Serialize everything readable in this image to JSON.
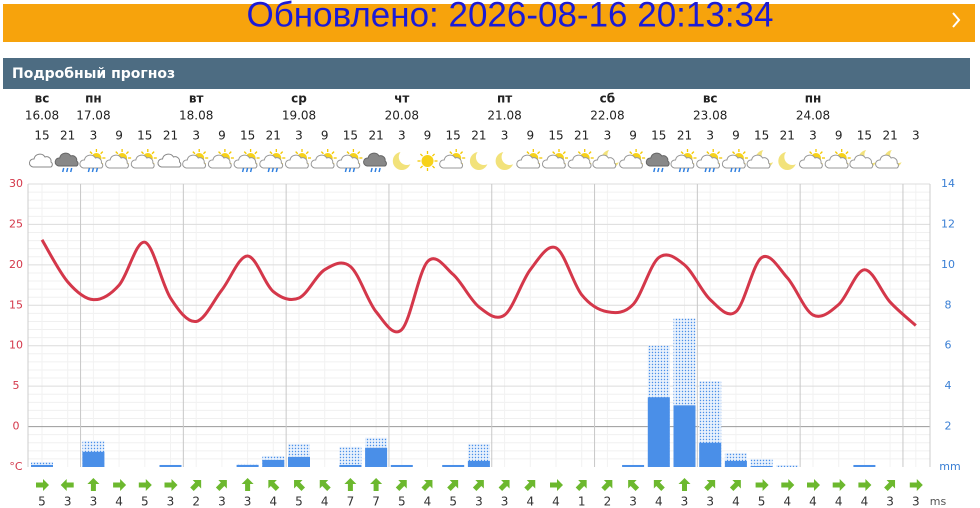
{
  "banner": {
    "text": "Обновлено: 2026-08-16 20:13:34"
  },
  "header": {
    "title": "Подробный прогноз"
  },
  "days": [
    {
      "name": "вс",
      "date": "16.08"
    },
    {
      "name": "пн",
      "date": "17.08"
    },
    {
      "name": "вт",
      "date": "18.08"
    },
    {
      "name": "ср",
      "date": "19.08"
    },
    {
      "name": "чт",
      "date": "20.08"
    },
    {
      "name": "пт",
      "date": "21.08"
    },
    {
      "name": "сб",
      "date": "22.08"
    },
    {
      "name": "вс",
      "date": "23.08"
    },
    {
      "name": "пн",
      "date": "24.08"
    }
  ],
  "chart_data": {
    "type": "line",
    "hours": [
      15,
      21,
      3,
      9,
      15,
      21,
      3,
      9,
      15,
      21,
      3,
      9,
      15,
      21,
      3,
      9,
      15,
      21,
      3,
      9,
      15,
      21,
      3,
      9,
      15,
      21,
      3,
      9,
      15,
      21,
      3,
      9,
      15,
      21,
      3
    ],
    "temperature": {
      "color": "#d4374a",
      "values": [
        23.1,
        17.9,
        15.7,
        17.5,
        22.8,
        15.9,
        13.0,
        16.9,
        21.1,
        16.7,
        15.9,
        19.4,
        19.8,
        14.2,
        12.0,
        20.4,
        18.8,
        14.8,
        13.8,
        19.4,
        22.1,
        16.3,
        14.2,
        15.1,
        20.9,
        20.0,
        15.7,
        14.2,
        20.9,
        18.4,
        13.8,
        15.1,
        19.4,
        15.4,
        12.5
      ]
    },
    "ylim": [
      -5,
      30
    ],
    "yticks": [
      0,
      5,
      10,
      15,
      20,
      25,
      30
    ],
    "y_unit": "°C",
    "precipitation": {
      "color": "#4a8fe8",
      "values": [
        0.1,
        0,
        0.75,
        0,
        0,
        0.1,
        0,
        0,
        0.1,
        0.35,
        0.5,
        0,
        0.1,
        0.95,
        0.1,
        0,
        0.1,
        0.3,
        0,
        0,
        0,
        0,
        0,
        0.1,
        3.45,
        3.05,
        1.2,
        0.3,
        0.05,
        0,
        0,
        0,
        0.1,
        0,
        0
      ],
      "max_values": [
        0.25,
        0,
        1.3,
        0,
        0,
        0,
        0,
        0,
        0.15,
        0.55,
        1.15,
        0,
        1.0,
        1.45,
        0,
        0,
        0,
        1.15,
        0,
        0,
        0,
        0,
        0,
        0,
        6.0,
        7.35,
        4.25,
        0.7,
        0.4,
        0.1,
        0,
        0,
        0,
        0,
        0
      ]
    },
    "y2lim": [
      0,
      14
    ],
    "y2ticks": [
      2,
      4,
      6,
      8,
      10,
      12,
      14
    ],
    "y2_unit": "mm",
    "wind": {
      "color": "#6cb82e",
      "speed": [
        5,
        3,
        3,
        4,
        5,
        3,
        2,
        3,
        3,
        4,
        5,
        4,
        7,
        7,
        5,
        4,
        5,
        3,
        3,
        4,
        4,
        1,
        2,
        3,
        4,
        3,
        3,
        4,
        5,
        4,
        4,
        4,
        4,
        3,
        3
      ],
      "direction": [
        90,
        270,
        0,
        90,
        90,
        90,
        45,
        45,
        0,
        315,
        315,
        315,
        0,
        0,
        45,
        45,
        45,
        45,
        45,
        45,
        90,
        45,
        45,
        315,
        315,
        0,
        45,
        45,
        90,
        90,
        90,
        90,
        90,
        45,
        90
      ],
      "unit": "ms"
    },
    "grid": true
  }
}
